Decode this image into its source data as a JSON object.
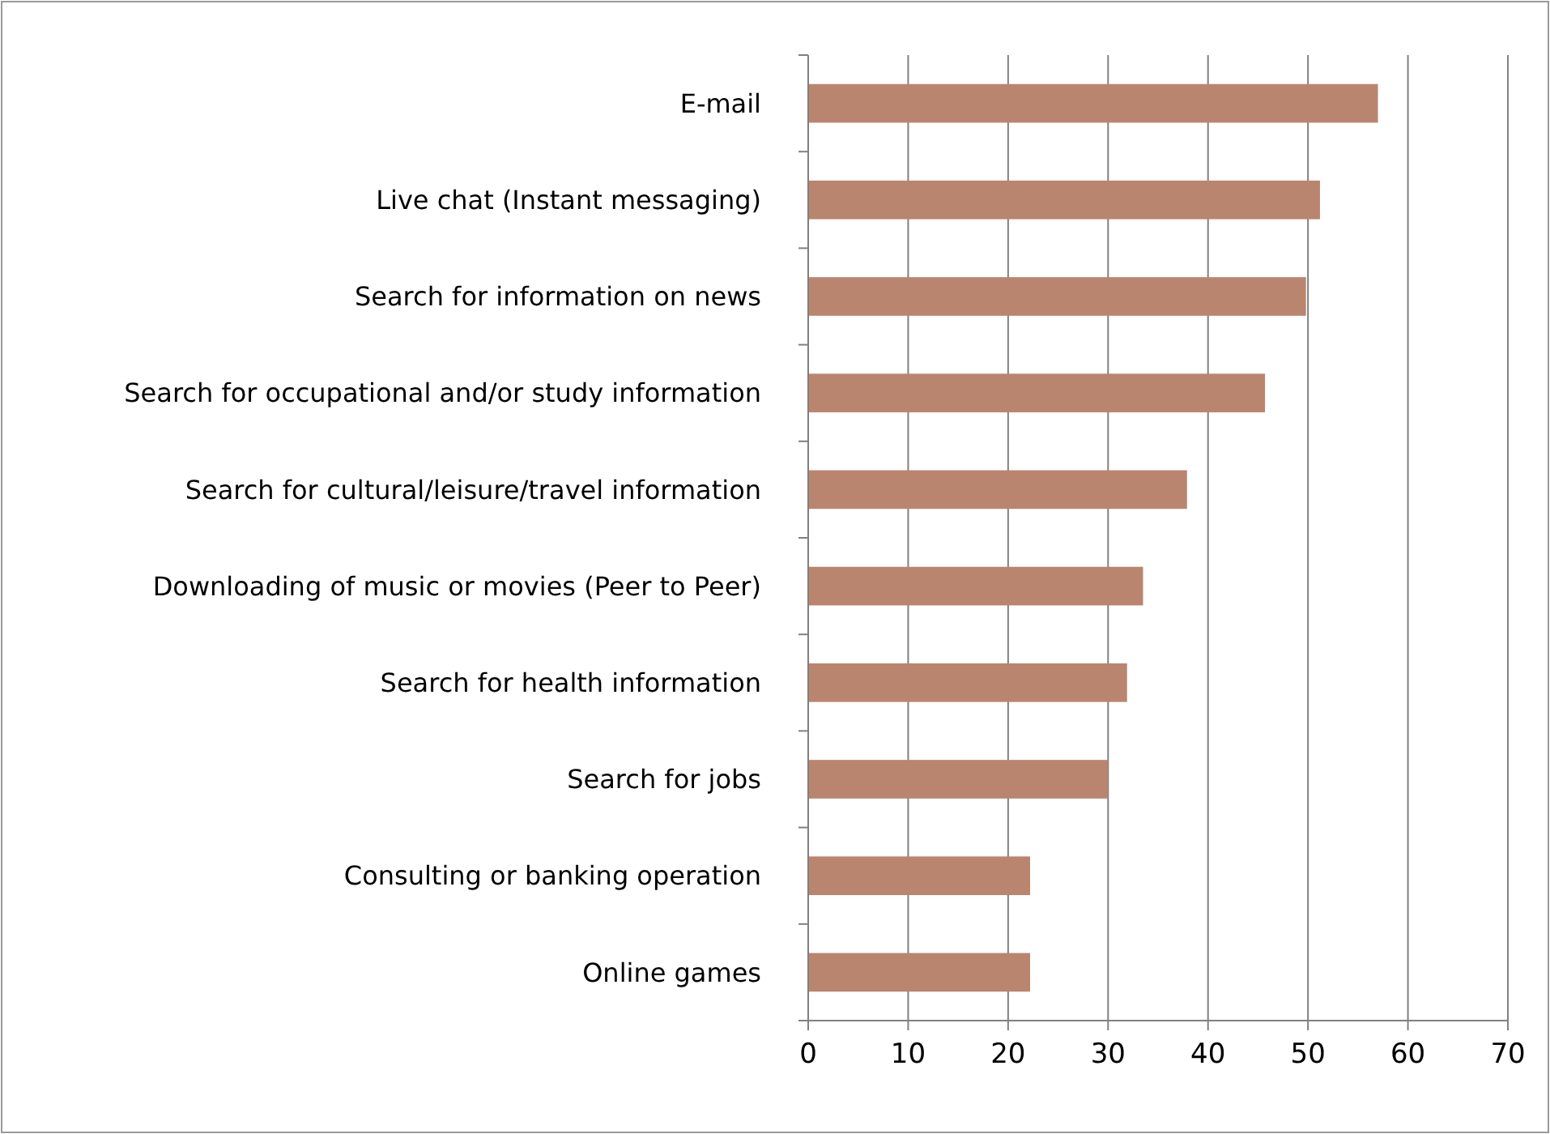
{
  "chart_data": {
    "type": "bar",
    "orientation": "horizontal",
    "categories": [
      "E-mail",
      "Live chat (Instant messaging)",
      "Search for information on news",
      "Search for occupational and/or study information",
      "Search for cultural/leisure/travel information",
      "Downloading of music or movies (Peer to Peer)",
      "Search for health information",
      "Search for jobs",
      "Consulting or banking operation",
      "Online games"
    ],
    "values": [
      57.0,
      51.2,
      49.8,
      45.7,
      37.9,
      33.5,
      31.9,
      30.0,
      22.2,
      22.2
    ],
    "color": "#b9856f",
    "xlim": [
      0,
      70
    ],
    "xticks": [
      0,
      10,
      20,
      30,
      40,
      50,
      60,
      70
    ],
    "grid": "x"
  }
}
